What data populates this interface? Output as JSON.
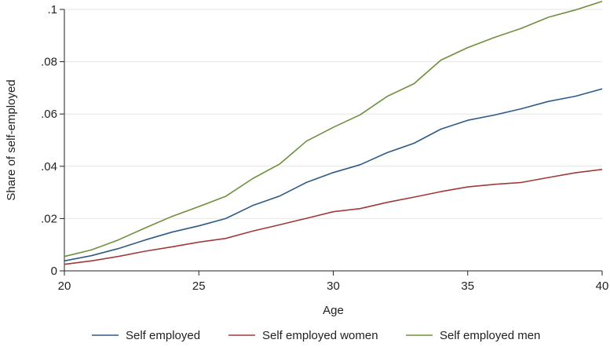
{
  "chart_data": {
    "type": "line",
    "xlabel": "Age",
    "ylabel": "Share of self-employed",
    "xlim": [
      20,
      40
    ],
    "ylim": [
      0,
      0.1
    ],
    "x": [
      20,
      21,
      22,
      23,
      24,
      25,
      26,
      27,
      28,
      29,
      30,
      31,
      32,
      33,
      34,
      35,
      36,
      37,
      38,
      39,
      40
    ],
    "x_ticks": [
      {
        "value": 20,
        "label": "20"
      },
      {
        "value": 25,
        "label": "25"
      },
      {
        "value": 30,
        "label": "30"
      },
      {
        "value": 35,
        "label": "35"
      },
      {
        "value": 40,
        "label": "40"
      }
    ],
    "y_ticks": [
      {
        "value": 0,
        "label": "0"
      },
      {
        "value": 0.02,
        "label": ".02"
      },
      {
        "value": 0.04,
        "label": ".04"
      },
      {
        "value": 0.06,
        "label": ".06"
      },
      {
        "value": 0.08,
        "label": ".08"
      },
      {
        "value": 0.1,
        "label": ".1"
      }
    ],
    "grid": "horizontal",
    "legend_position": "bottom",
    "series": [
      {
        "name": "Self employed",
        "color": "#2e5a87",
        "values": [
          0.0038,
          0.0058,
          0.0085,
          0.0118,
          0.0148,
          0.0172,
          0.02,
          0.025,
          0.0286,
          0.0338,
          0.0376,
          0.0406,
          0.0452,
          0.0488,
          0.0542,
          0.0576,
          0.0596,
          0.062,
          0.0648,
          0.0668,
          0.0696
        ]
      },
      {
        "name": "Self employed women",
        "color": "#a03a3a",
        "values": [
          0.0025,
          0.0038,
          0.0055,
          0.0075,
          0.0092,
          0.011,
          0.0124,
          0.0152,
          0.0176,
          0.0201,
          0.0226,
          0.0238,
          0.0262,
          0.0282,
          0.0303,
          0.0321,
          0.0331,
          0.0338,
          0.0357,
          0.0375,
          0.0388
        ]
      },
      {
        "name": "Self employed men",
        "color": "#6e8f3e",
        "values": [
          0.0055,
          0.008,
          0.0118,
          0.0164,
          0.0208,
          0.0246,
          0.0285,
          0.0353,
          0.0408,
          0.0496,
          0.0549,
          0.0597,
          0.0667,
          0.0716,
          0.0806,
          0.0854,
          0.0893,
          0.0928,
          0.097,
          0.0998,
          0.1031
        ]
      }
    ]
  }
}
